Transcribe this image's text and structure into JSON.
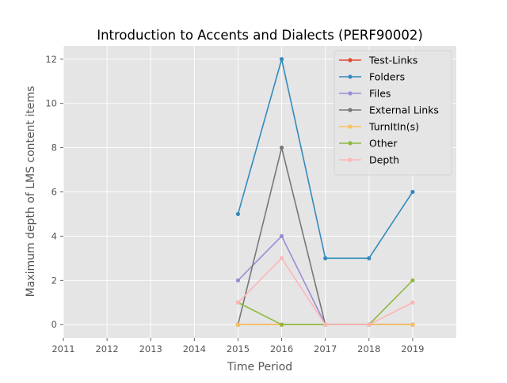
{
  "chart_data": {
    "type": "line",
    "title": "Introduction to Accents and Dialects (PERF90002)",
    "xlabel": "Time Period",
    "ylabel": "Maximum depth of LMS content items",
    "xlim": [
      2011,
      2020
    ],
    "ylim": [
      -0.6,
      12.6
    ],
    "x_ticks": [
      2011,
      2012,
      2013,
      2014,
      2015,
      2016,
      2017,
      2018,
      2019
    ],
    "y_ticks": [
      0,
      2,
      4,
      6,
      8,
      10,
      12
    ],
    "x": [
      2015,
      2016,
      2017,
      2018,
      2019
    ],
    "grid": true,
    "legend_position": "upper right",
    "series": [
      {
        "name": "Test-Links",
        "color": "#E24A33",
        "values": [
          0,
          0,
          0,
          0,
          0
        ]
      },
      {
        "name": "Folders",
        "color": "#348ABD",
        "values": [
          5,
          12,
          3,
          3,
          6
        ]
      },
      {
        "name": "Files",
        "color": "#988ED5",
        "values": [
          2,
          4,
          0,
          0,
          0
        ]
      },
      {
        "name": "External Links",
        "color": "#777777",
        "values": [
          0,
          8,
          0,
          0,
          0
        ]
      },
      {
        "name": "TurnItIn(s)",
        "color": "#FBC15E",
        "values": [
          0,
          0,
          0,
          0,
          0
        ]
      },
      {
        "name": "Other",
        "color": "#8EBA42",
        "values": [
          1,
          0,
          0,
          0,
          2
        ]
      },
      {
        "name": "Depth",
        "color": "#FFB5B8",
        "values": [
          1,
          3,
          0,
          0,
          1
        ]
      }
    ]
  }
}
